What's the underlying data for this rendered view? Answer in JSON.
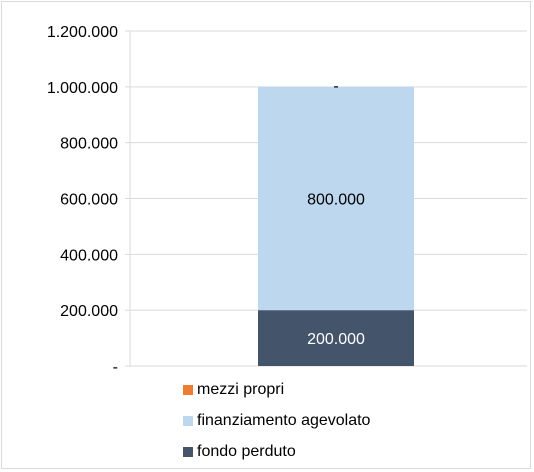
{
  "chart_data": {
    "type": "bar",
    "stacked": true,
    "categories": [
      ""
    ],
    "series": [
      {
        "name": "fondo perduto",
        "values": [
          200000
        ],
        "color": "#44546a",
        "label": "200.000"
      },
      {
        "name": "finanziamento agevolato",
        "values": [
          800000
        ],
        "color": "#bdd7ee",
        "label": "800.000"
      },
      {
        "name": "mezzi propri",
        "values": [
          0
        ],
        "color": "#ed7d31",
        "label": "-"
      }
    ],
    "ylim": [
      0,
      1200000
    ],
    "yticks": [
      0,
      200000,
      400000,
      600000,
      800000,
      1000000,
      1200000
    ],
    "ytick_labels": [
      "-",
      "200.000",
      "400.000",
      "600.000",
      "800.000",
      "1.000.000",
      "1.200.000"
    ],
    "grid": true,
    "legend": "bottom",
    "legend_order": [
      "mezzi propri",
      "finanziamento agevolato",
      "fondo perduto"
    ],
    "title": "",
    "xlabel": "",
    "ylabel": ""
  }
}
